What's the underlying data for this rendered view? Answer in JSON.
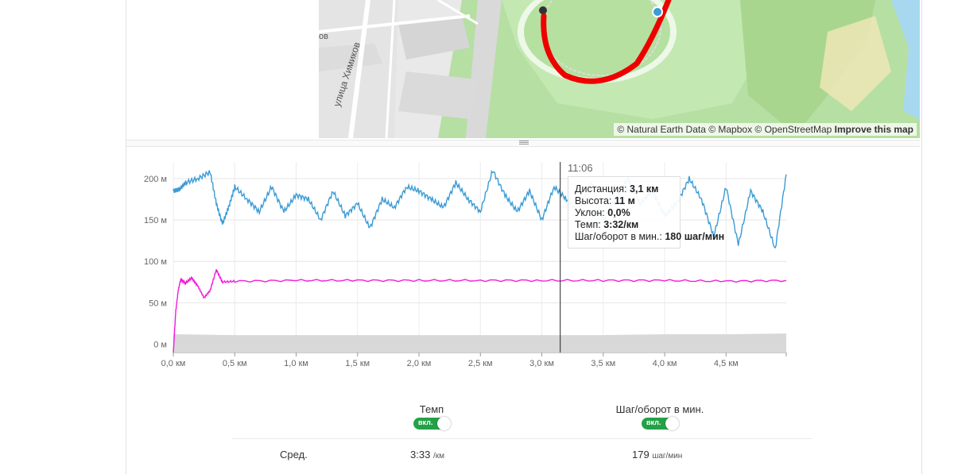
{
  "map": {
    "street_label": "улица Химиков",
    "street_label_partial": "ов",
    "attribution": {
      "text": "© Natural Earth Data © Mapbox © OpenStreetMap",
      "link": "Improve this map"
    }
  },
  "chart": {
    "y_ticks": [
      "200 м",
      "150 м",
      "100 м",
      "50 м",
      "0 м"
    ],
    "x_ticks": [
      "0,0 км",
      "0,5 км",
      "1,0 км",
      "1,5 км",
      "2,0 км",
      "2,5 км",
      "3,0 км",
      "3,5 км",
      "4,0 км",
      "4,5 км"
    ],
    "hover_time": "11:06",
    "tooltip": {
      "distance_label": "Дистанция:",
      "distance_value": "3,1 км",
      "elevation_label": "Высота:",
      "elevation_value": "11 м",
      "grade_label": "Уклон:",
      "grade_value": "0,0%",
      "pace_label": "Темп:",
      "pace_value": "3:32/км",
      "cadence_label": "Шаг/оборот в мин.:",
      "cadence_value": "180 шаг/мин"
    },
    "colors": {
      "pace": "#3a9bd5",
      "cadence": "#f21cd8",
      "elevation": "#d8d8d8"
    }
  },
  "chart_data": {
    "type": "line",
    "xlabel": "",
    "ylabel": "",
    "x_unit": "км",
    "xlim": [
      0,
      4.99
    ],
    "ylim": [
      -10,
      220
    ],
    "series": [
      {
        "x": [
          0.0,
          0.05,
          0.1,
          0.2,
          0.3,
          0.35,
          0.4,
          0.45,
          0.5,
          0.6,
          0.7,
          0.8,
          0.9,
          1.0,
          1.1,
          1.2,
          1.3,
          1.4,
          1.5,
          1.6,
          1.7,
          1.8,
          1.9,
          2.0,
          2.1,
          2.2,
          2.3,
          2.4,
          2.5,
          2.6,
          2.7,
          2.8,
          2.9,
          3.0,
          3.1,
          3.2,
          3.3,
          3.4,
          3.5,
          3.6,
          3.7,
          3.8,
          3.9,
          4.0,
          4.1,
          4.2,
          4.3,
          4.4,
          4.5,
          4.6,
          4.7,
          4.8,
          4.9,
          4.99
        ],
        "values": [
          185,
          187,
          195,
          200,
          208,
          170,
          145,
          165,
          190,
          175,
          160,
          190,
          160,
          180,
          175,
          150,
          185,
          155,
          170,
          140,
          175,
          165,
          190,
          185,
          175,
          165,
          195,
          175,
          160,
          210,
          180,
          160,
          185,
          150,
          190,
          175,
          160,
          195,
          150,
          175,
          200,
          170,
          185,
          155,
          170,
          200,
          175,
          130,
          190,
          120,
          185,
          160,
          115,
          205
        ]
      },
      {
        "x": [
          0.0,
          0.02,
          0.04,
          0.06,
          0.1,
          0.15,
          0.2,
          0.25,
          0.3,
          0.35,
          0.4,
          0.5,
          1.0,
          1.5,
          2.0,
          2.5,
          3.0,
          3.5,
          4.0,
          4.5,
          4.99
        ],
        "values": [
          -10,
          40,
          65,
          78,
          74,
          80,
          70,
          56,
          65,
          90,
          75,
          76,
          77,
          77,
          77,
          77,
          77,
          77,
          77,
          76,
          77
        ]
      },
      {
        "x": [
          0.0,
          0.5,
          1.0,
          1.5,
          2.0,
          2.5,
          3.0,
          3.5,
          4.0,
          4.5,
          4.99
        ],
        "values": [
          12,
          11,
          11,
          11,
          11,
          11,
          11,
          11,
          12,
          12,
          13
        ]
      }
    ],
    "annotations": {
      "crosshair_x": 3.15
    }
  },
  "stats": {
    "pace_header": "Темп",
    "cadence_header": "Шаг/оборот в мин.",
    "toggle_label": "вкл.",
    "avg_label": "Сред.",
    "avg_pace": "3:33",
    "avg_pace_unit": "/км",
    "avg_cadence": "179",
    "avg_cadence_unit": "шаг/мин"
  }
}
